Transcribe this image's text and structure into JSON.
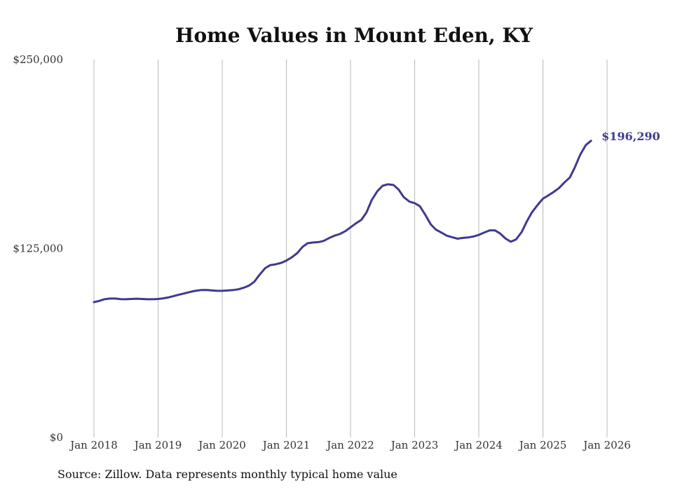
{
  "chart_data": {
    "type": "line",
    "title": "Home Values in Mount Eden, KY",
    "xlabel": "",
    "ylabel": "",
    "y_ticks": [
      {
        "value": 250000,
        "label": "$250,000"
      },
      {
        "value": 125000,
        "label": "$125,000"
      },
      {
        "value": 0,
        "label": "$0"
      }
    ],
    "ylim": [
      0,
      250000
    ],
    "xlim": [
      2018.0,
      2026.2
    ],
    "x_ticks": [
      {
        "value": 2018,
        "label": "Jan 2018"
      },
      {
        "value": 2019,
        "label": "Jan 2019"
      },
      {
        "value": 2020,
        "label": "Jan 2020"
      },
      {
        "value": 2021,
        "label": "Jan 2021"
      },
      {
        "value": 2022,
        "label": "Jan 2022"
      },
      {
        "value": 2023,
        "label": "Jan 2023"
      },
      {
        "value": 2024,
        "label": "Jan 2024"
      },
      {
        "value": 2025,
        "label": "Jan 2025"
      },
      {
        "value": 2026,
        "label": "Jan 2026"
      }
    ],
    "grid": "vertical",
    "series": [
      {
        "name": "Typical home value",
        "color": "#3f3a8f",
        "end_label": "$196,290",
        "points": [
          [
            2018.0,
            89500
          ],
          [
            2018.08,
            90300
          ],
          [
            2018.17,
            91500
          ],
          [
            2018.25,
            91900
          ],
          [
            2018.33,
            91900
          ],
          [
            2018.42,
            91500
          ],
          [
            2018.5,
            91400
          ],
          [
            2018.58,
            91600
          ],
          [
            2018.67,
            91800
          ],
          [
            2018.75,
            91600
          ],
          [
            2018.83,
            91400
          ],
          [
            2018.92,
            91400
          ],
          [
            2019.0,
            91600
          ],
          [
            2019.08,
            92000
          ],
          [
            2019.17,
            92700
          ],
          [
            2019.25,
            93600
          ],
          [
            2019.33,
            94500
          ],
          [
            2019.42,
            95400
          ],
          [
            2019.5,
            96300
          ],
          [
            2019.58,
            97000
          ],
          [
            2019.67,
            97500
          ],
          [
            2019.75,
            97600
          ],
          [
            2019.83,
            97300
          ],
          [
            2019.92,
            97000
          ],
          [
            2020.0,
            97000
          ],
          [
            2020.08,
            97200
          ],
          [
            2020.17,
            97500
          ],
          [
            2020.25,
            98000
          ],
          [
            2020.33,
            99000
          ],
          [
            2020.42,
            100500
          ],
          [
            2020.5,
            103000
          ],
          [
            2020.58,
            107500
          ],
          [
            2020.67,
            112000
          ],
          [
            2020.75,
            114000
          ],
          [
            2020.83,
            114500
          ],
          [
            2020.92,
            115500
          ],
          [
            2021.0,
            117000
          ],
          [
            2021.08,
            119000
          ],
          [
            2021.17,
            122000
          ],
          [
            2021.25,
            126000
          ],
          [
            2021.33,
            128500
          ],
          [
            2021.42,
            129000
          ],
          [
            2021.5,
            129200
          ],
          [
            2021.58,
            130000
          ],
          [
            2021.67,
            132000
          ],
          [
            2021.75,
            133500
          ],
          [
            2021.83,
            134500
          ],
          [
            2021.92,
            136500
          ],
          [
            2022.0,
            139000
          ],
          [
            2022.08,
            141500
          ],
          [
            2022.17,
            144000
          ],
          [
            2022.25,
            149000
          ],
          [
            2022.33,
            157000
          ],
          [
            2022.42,
            163000
          ],
          [
            2022.5,
            166500
          ],
          [
            2022.58,
            167500
          ],
          [
            2022.67,
            167000
          ],
          [
            2022.75,
            164000
          ],
          [
            2022.83,
            159000
          ],
          [
            2022.92,
            156000
          ],
          [
            2023.0,
            155000
          ],
          [
            2023.08,
            153000
          ],
          [
            2023.17,
            147000
          ],
          [
            2023.25,
            141000
          ],
          [
            2023.33,
            137500
          ],
          [
            2023.42,
            135500
          ],
          [
            2023.5,
            133500
          ],
          [
            2023.58,
            132500
          ],
          [
            2023.67,
            131500
          ],
          [
            2023.75,
            132000
          ],
          [
            2023.83,
            132300
          ],
          [
            2023.92,
            133000
          ],
          [
            2024.0,
            134000
          ],
          [
            2024.08,
            135500
          ],
          [
            2024.17,
            137000
          ],
          [
            2024.25,
            137000
          ],
          [
            2024.33,
            135000
          ],
          [
            2024.42,
            131500
          ],
          [
            2024.5,
            129500
          ],
          [
            2024.58,
            131000
          ],
          [
            2024.67,
            136000
          ],
          [
            2024.75,
            143000
          ],
          [
            2024.83,
            149000
          ],
          [
            2024.92,
            154000
          ],
          [
            2025.0,
            158000
          ],
          [
            2025.08,
            160000
          ],
          [
            2025.17,
            162500
          ],
          [
            2025.25,
            165000
          ],
          [
            2025.33,
            168500
          ],
          [
            2025.42,
            172000
          ],
          [
            2025.5,
            179000
          ],
          [
            2025.58,
            187000
          ],
          [
            2025.67,
            193500
          ],
          [
            2025.75,
            196290
          ]
        ]
      }
    ]
  },
  "footer": {
    "source": "Source: Zillow. Data represents monthly typical home value"
  }
}
